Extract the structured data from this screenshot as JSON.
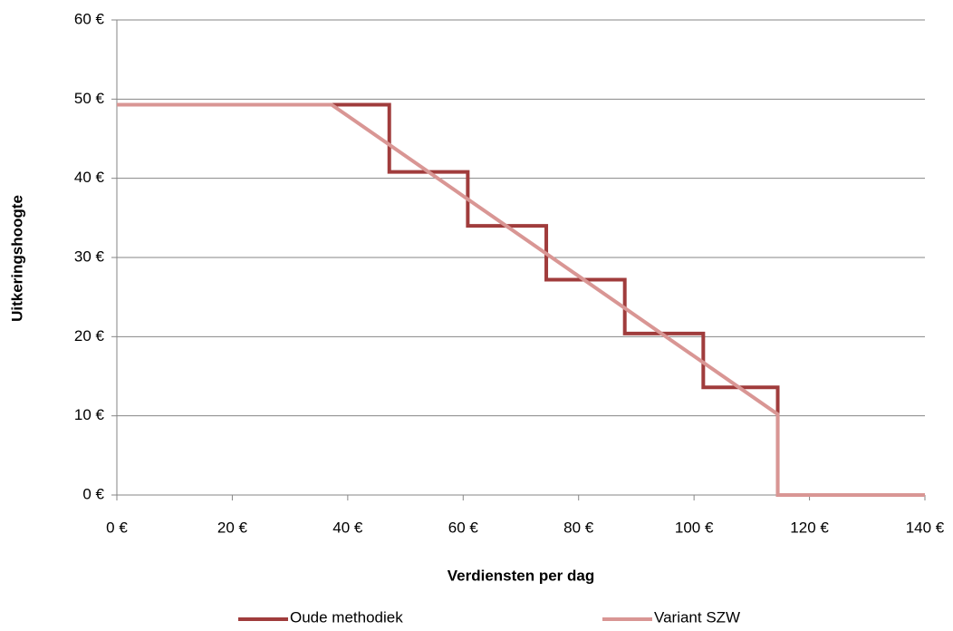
{
  "chart_data": {
    "type": "line",
    "x_label": "Verdiensten per dag",
    "y_label": "Uitkeringshoogte",
    "xlim": [
      0,
      140
    ],
    "xticks": [
      {
        "value": 0,
        "label": "0 €"
      },
      {
        "value": 20,
        "label": "20 €"
      },
      {
        "value": 40,
        "label": "40 €"
      },
      {
        "value": 60,
        "label": "60 €"
      },
      {
        "value": 80,
        "label": "80 €"
      },
      {
        "value": 100,
        "label": "100 €"
      },
      {
        "value": 120,
        "label": "120 €"
      },
      {
        "value": 140,
        "label": "140 €"
      }
    ],
    "ylim": [
      0,
      60
    ],
    "yticks": [
      {
        "value": 0,
        "label": "0 €"
      },
      {
        "value": 10,
        "label": "10 €"
      },
      {
        "value": 20,
        "label": "20 €"
      },
      {
        "value": 30,
        "label": "30 €"
      },
      {
        "value": 40,
        "label": "40 €"
      },
      {
        "value": 50,
        "label": "50 €"
      },
      {
        "value": 60,
        "label": "60 €"
      }
    ],
    "grid": true,
    "legend": "bottom",
    "series": [
      {
        "name": "Oude methodiek",
        "color": "#a03c3c",
        "x": [
          0,
          47.2,
          47.2,
          60.8,
          60.8,
          74.4,
          74.4,
          88,
          88,
          101.6,
          101.6,
          114.5,
          114.5,
          140
        ],
        "values": [
          49.3,
          49.3,
          40.8,
          40.8,
          34.0,
          34.0,
          27.2,
          27.2,
          20.4,
          20.4,
          13.6,
          13.6,
          0,
          0
        ]
      },
      {
        "name": "Variant SZW",
        "color": "#d99694",
        "x": [
          0,
          37.2,
          114.5,
          114.5,
          140
        ],
        "values": [
          49.3,
          49.3,
          10.2,
          0,
          0
        ]
      }
    ]
  }
}
